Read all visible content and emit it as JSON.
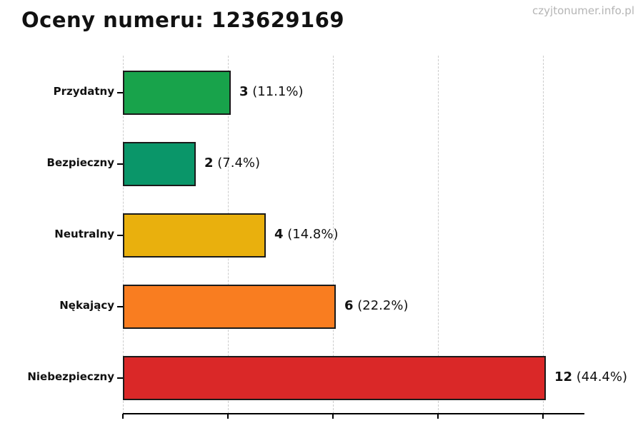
{
  "header": {
    "title": "Oceny numeru: 123629169",
    "watermark": "czyjtonumer.info.pl"
  },
  "chart_data": {
    "type": "bar",
    "orientation": "horizontal",
    "title": "Oceny numeru: 123629169",
    "categories": [
      "Przydatny",
      "Bezpieczny",
      "Neutralny",
      "Nękający",
      "Niebezpieczny"
    ],
    "values": [
      3,
      2,
      4,
      6,
      12
    ],
    "percent_labels": [
      "11.1%",
      "7.4%",
      "14.8%",
      "22.2%",
      "44.4%"
    ],
    "value_labels": [
      "3 (11.1%)",
      "2 (7.4%)",
      "4 (14.8%)",
      "6 (22.2%)",
      "12 (44.4%)"
    ],
    "bar_colors": [
      "#18a34b",
      "#0a9669",
      "#e9b00d",
      "#f97d20",
      "#da2828"
    ],
    "bar_edge_color": "#1a1a1a",
    "xlim": [
      0,
      12
    ],
    "x_gridlines": [
      0,
      3,
      6,
      9,
      12
    ],
    "x_tick_labels_visible": false,
    "grid": "dashed vertical",
    "legend": "none"
  }
}
